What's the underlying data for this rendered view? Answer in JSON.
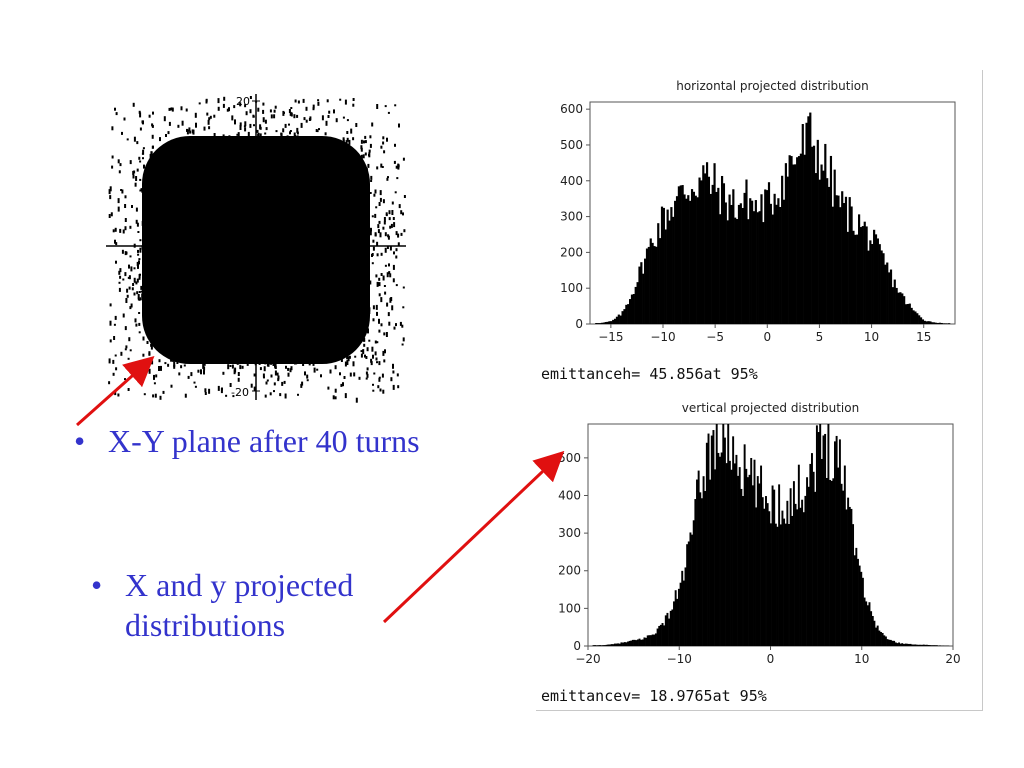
{
  "slide": {
    "bullets": [
      {
        "marker": "•",
        "text": "X-Y plane after 40 turns"
      },
      {
        "marker": "•",
        "text": "X and y projected",
        "text2": "distributions"
      }
    ]
  },
  "chart_data": [
    {
      "type": "scatter",
      "title": "",
      "description_ticks": [
        "20",
        "-20"
      ],
      "ylim": [
        -20,
        20
      ],
      "x_tick_labels": [],
      "y_tick_labels": [
        "20",
        "-20"
      ]
    },
    {
      "type": "bar",
      "title": "horizontal    projected    distribution",
      "xlim": [
        -17,
        18
      ],
      "ylim": [
        0,
        620
      ],
      "x_ticks": [
        -15,
        -10,
        -5,
        0,
        5,
        10,
        15
      ],
      "y_ticks": [
        0,
        100,
        200,
        300,
        400,
        500,
        600
      ],
      "x": [
        -16,
        -15,
        -14,
        -13,
        -12,
        -11,
        -10,
        -9,
        -8,
        -7,
        -6,
        -5,
        -4,
        -3,
        -2,
        -1,
        0,
        1,
        2,
        3,
        4,
        5,
        6,
        7,
        8,
        9,
        10,
        11,
        12,
        13,
        14,
        15,
        16,
        17
      ],
      "values": [
        3,
        8,
        30,
        90,
        170,
        240,
        300,
        340,
        370,
        395,
        410,
        380,
        345,
        330,
        350,
        320,
        340,
        380,
        440,
        480,
        520,
        470,
        400,
        330,
        300,
        270,
        230,
        180,
        120,
        70,
        35,
        10,
        4,
        2
      ],
      "annotation": "emittanceh= 45.856at 95%"
    },
    {
      "type": "bar",
      "title": "vertical    projected    distribution",
      "xlim": [
        -20,
        20
      ],
      "ylim": [
        0,
        590
      ],
      "x_ticks": [
        -20,
        -10,
        0,
        10,
        20
      ],
      "y_ticks": [
        0,
        100,
        200,
        300,
        400,
        500
      ],
      "x": [
        -19,
        -18,
        -17,
        -16,
        -15,
        -14,
        -13,
        -12,
        -11,
        -10,
        -9,
        -8,
        -7,
        -6,
        -5,
        -4,
        -3,
        -2,
        -1,
        0,
        1,
        2,
        3,
        4,
        5,
        6,
        7,
        8,
        9,
        10,
        11,
        12,
        13,
        14,
        15,
        16,
        17,
        18,
        19
      ],
      "values": [
        2,
        3,
        6,
        10,
        15,
        20,
        32,
        55,
        95,
        160,
        260,
        400,
        510,
        560,
        560,
        515,
        460,
        430,
        405,
        385,
        375,
        385,
        410,
        450,
        510,
        545,
        525,
        450,
        310,
        170,
        80,
        35,
        15,
        8,
        5,
        4,
        3,
        2,
        1
      ],
      "annotation": "emittancev= 18.9765at 95%"
    }
  ]
}
